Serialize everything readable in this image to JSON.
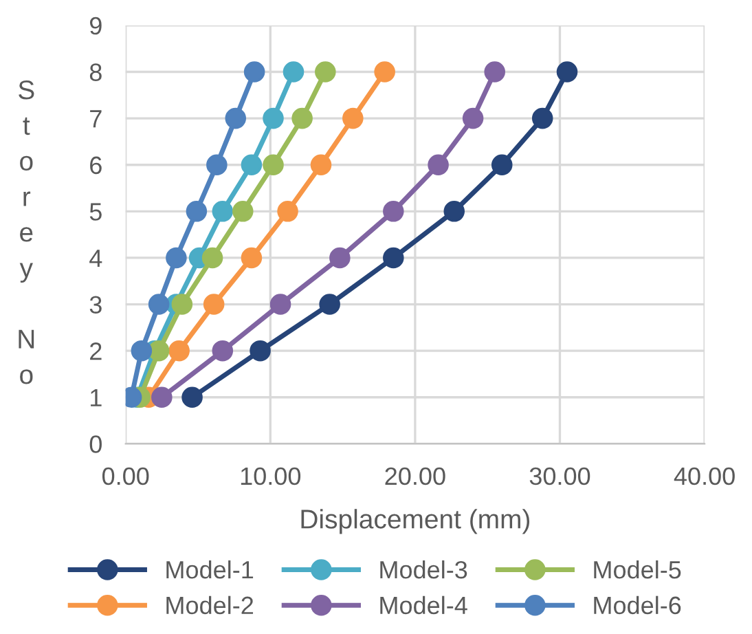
{
  "chart_data": {
    "type": "line",
    "xlabel": "Displacement (mm)",
    "ylabel": "Storey No",
    "xlim": [
      0,
      40
    ],
    "ylim": [
      0,
      9
    ],
    "xticks": [
      {
        "value": 0,
        "label": "0.00"
      },
      {
        "value": 10,
        "label": "10.00"
      },
      {
        "value": 20,
        "label": "20.00"
      },
      {
        "value": 30,
        "label": "30.00"
      },
      {
        "value": 40,
        "label": "40.00"
      }
    ],
    "yticks": [
      0,
      1,
      2,
      3,
      4,
      5,
      6,
      7,
      8,
      9
    ],
    "grid": true,
    "legend": "bottom",
    "marker": "circle",
    "line_style": "solid",
    "series": [
      {
        "name": "Model-1",
        "color": "#264478",
        "x": [
          4.6,
          9.3,
          14.1,
          18.5,
          22.7,
          26.0,
          28.8,
          30.5
        ],
        "values": [
          1,
          2,
          3,
          4,
          5,
          6,
          7,
          8
        ]
      },
      {
        "name": "Model-2",
        "color": "#f79646",
        "x": [
          1.6,
          3.7,
          6.1,
          8.7,
          11.2,
          13.5,
          15.7,
          17.9
        ],
        "values": [
          1,
          2,
          3,
          4,
          5,
          6,
          7,
          8
        ]
      },
      {
        "name": "Model-3",
        "color": "#4bacc6",
        "x": [
          0.8,
          2.0,
          3.5,
          5.1,
          6.7,
          8.7,
          10.2,
          11.6
        ],
        "values": [
          1,
          2,
          3,
          4,
          5,
          6,
          7,
          8
        ]
      },
      {
        "name": "Model-4",
        "color": "#8064a2",
        "x": [
          2.5,
          6.7,
          10.7,
          14.8,
          18.5,
          21.6,
          24.0,
          25.5
        ],
        "values": [
          1,
          2,
          3,
          4,
          5,
          6,
          7,
          8
        ]
      },
      {
        "name": "Model-5",
        "color": "#9bbb59",
        "x": [
          1.0,
          2.3,
          3.9,
          6.0,
          8.1,
          10.2,
          12.2,
          13.8
        ],
        "values": [
          1,
          2,
          3,
          4,
          5,
          6,
          7,
          8
        ]
      },
      {
        "name": "Model-6",
        "color": "#4f81bd",
        "x": [
          0.4,
          1.1,
          2.3,
          3.5,
          4.9,
          6.3,
          7.6,
          8.9
        ],
        "values": [
          1,
          2,
          3,
          4,
          5,
          6,
          7,
          8
        ]
      }
    ]
  }
}
